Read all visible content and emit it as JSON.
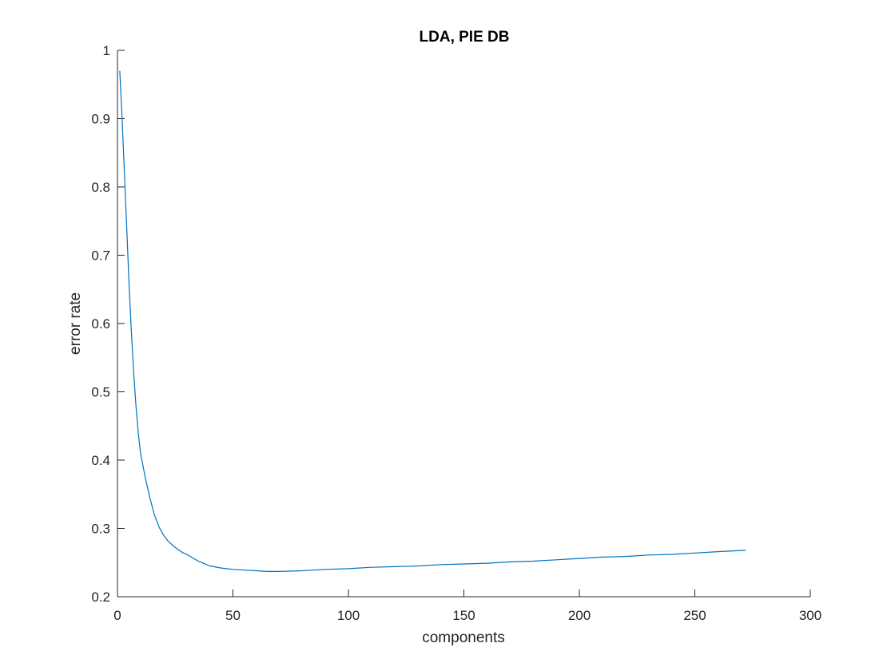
{
  "chart_data": {
    "type": "line",
    "title": "LDA, PIE DB",
    "xlabel": "components",
    "ylabel": "error rate",
    "xlim": [
      0,
      300
    ],
    "ylim": [
      0.2,
      1
    ],
    "xticks": [
      0,
      50,
      100,
      150,
      200,
      250,
      300
    ],
    "xtick_labels": [
      "0",
      "50",
      "100",
      "150",
      "200",
      "250",
      "300"
    ],
    "yticks": [
      0.2,
      0.3,
      0.4,
      0.5,
      0.6,
      0.7,
      0.8,
      0.9,
      1
    ],
    "ytick_labels": [
      "0.2",
      "0.3",
      "0.4",
      "0.5",
      "0.6",
      "0.7",
      "0.8",
      "0.9",
      "1"
    ],
    "grid": false,
    "legend": "none",
    "series": [
      {
        "color": "#0072BD",
        "x": [
          1,
          2,
          3,
          4,
          5,
          6,
          7,
          8,
          9,
          10,
          12,
          14,
          16,
          18,
          20,
          22,
          25,
          28,
          30,
          35,
          40,
          45,
          50,
          55,
          60,
          65,
          70,
          80,
          90,
          100,
          110,
          120,
          130,
          140,
          150,
          160,
          170,
          180,
          190,
          200,
          210,
          220,
          230,
          240,
          250,
          260,
          272
        ],
        "y": [
          0.97,
          0.9,
          0.82,
          0.74,
          0.66,
          0.59,
          0.53,
          0.48,
          0.44,
          0.41,
          0.375,
          0.345,
          0.32,
          0.302,
          0.29,
          0.281,
          0.272,
          0.265,
          0.262,
          0.252,
          0.245,
          0.242,
          0.24,
          0.239,
          0.238,
          0.237,
          0.237,
          0.238,
          0.24,
          0.241,
          0.243,
          0.244,
          0.245,
          0.247,
          0.248,
          0.249,
          0.251,
          0.252,
          0.254,
          0.256,
          0.258,
          0.259,
          0.261,
          0.262,
          0.264,
          0.266,
          0.268
        ]
      }
    ]
  }
}
